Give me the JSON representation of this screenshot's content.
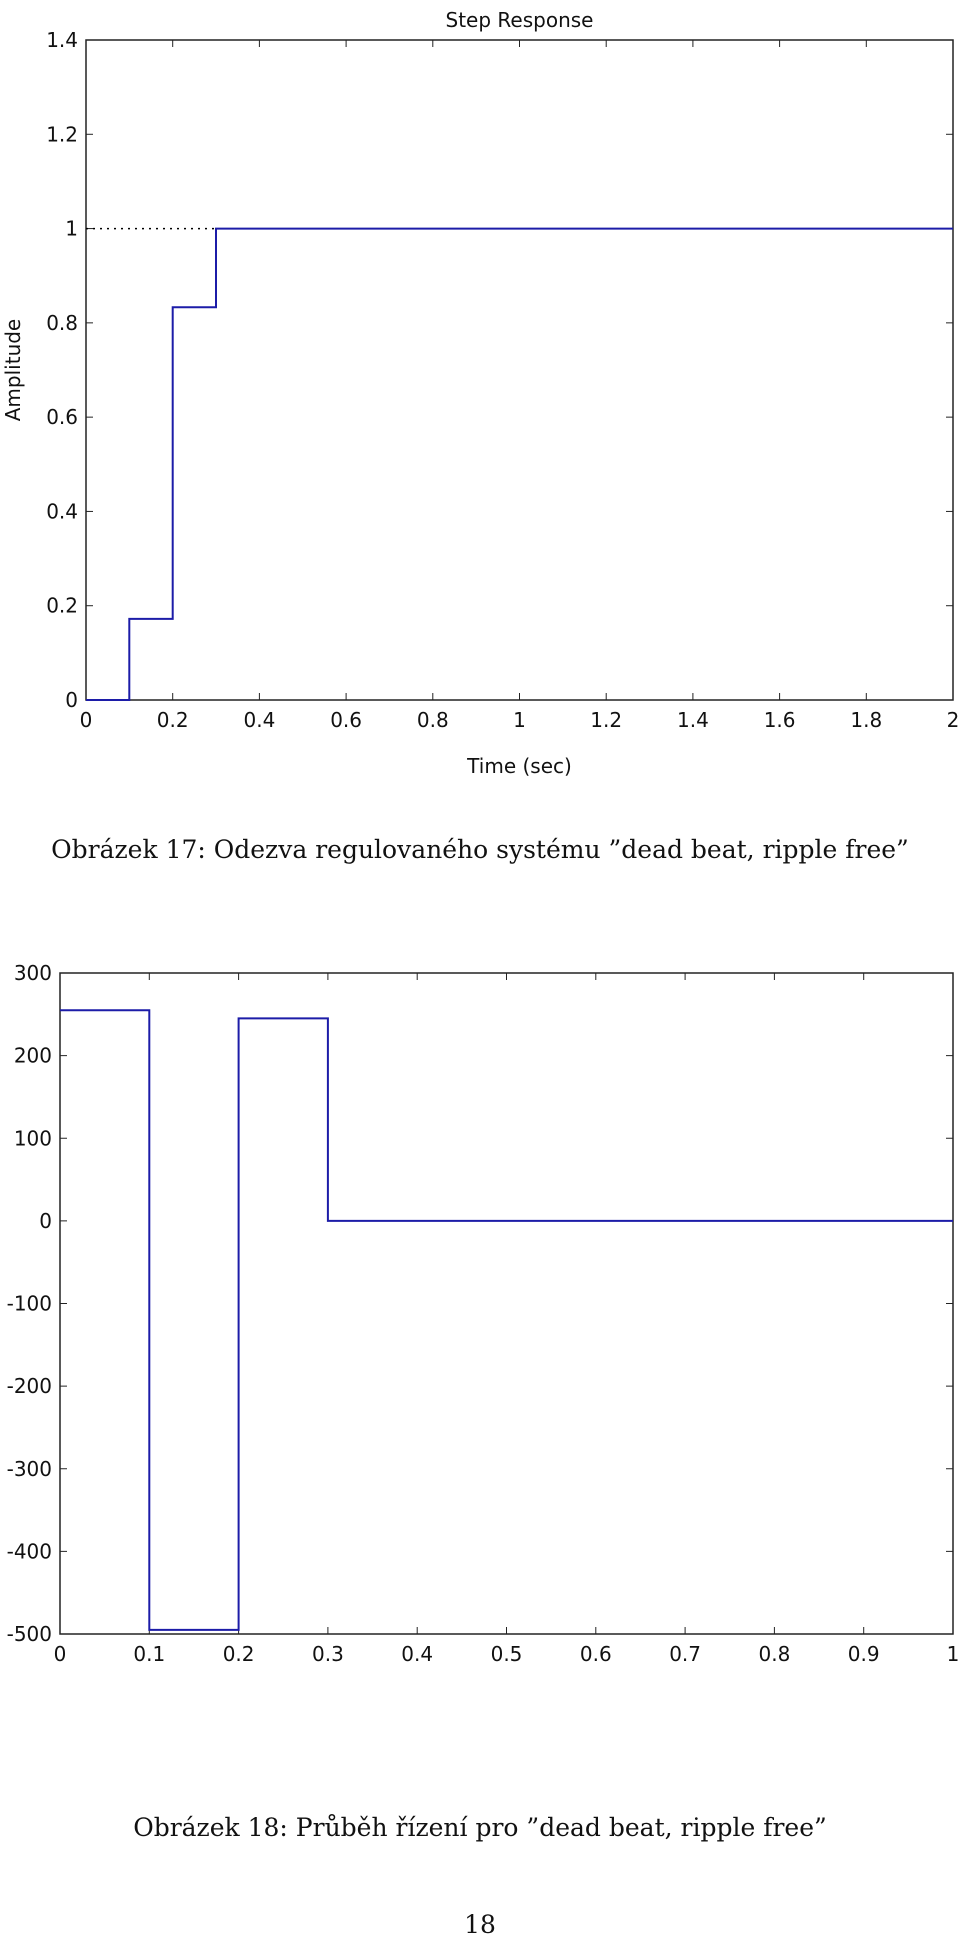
{
  "page_number": "18",
  "chart_data": [
    {
      "type": "line",
      "step": true,
      "title": "Step Response",
      "xlabel": "Time (sec)",
      "ylabel": "Amplitude",
      "xlim": [
        0,
        2
      ],
      "ylim": [
        0,
        1.4
      ],
      "xticks": [
        "0",
        "0.2",
        "0.4",
        "0.6",
        "0.8",
        "1",
        "1.2",
        "1.4",
        "1.6",
        "1.8",
        "2"
      ],
      "yticks": [
        "0",
        "0.2",
        "0.4",
        "0.6",
        "0.8",
        "1",
        "1.2",
        "1.4"
      ],
      "series": [
        {
          "color": "#1c1ca8",
          "x": [
            0,
            0.1,
            0.1,
            0.2,
            0.2,
            0.3,
            0.3,
            2
          ],
          "y": [
            0,
            0,
            0.172,
            0.172,
            0.833,
            0.833,
            1,
            1
          ]
        }
      ],
      "reference_line": {
        "y": 1,
        "x_range": [
          0,
          0.3
        ],
        "style": "dotted",
        "color": "#000000"
      },
      "caption": "Obrázek 17: Odezva regulovaného systému ”dead beat, ripple free”"
    },
    {
      "type": "line",
      "step": true,
      "xlim": [
        0,
        1
      ],
      "ylim": [
        -500,
        300
      ],
      "xticks": [
        "0",
        "0.1",
        "0.2",
        "0.3",
        "0.4",
        "0.5",
        "0.6",
        "0.7",
        "0.8",
        "0.9",
        "1"
      ],
      "yticks": [
        "300",
        "200",
        "100",
        "0",
        "-100",
        "-200",
        "-300",
        "-400",
        "-500"
      ],
      "series": [
        {
          "color": "#1c1ca8",
          "x": [
            0,
            0.1,
            0.1,
            0.2,
            0.2,
            0.3,
            0.3,
            1
          ],
          "y": [
            255,
            255,
            -495,
            -495,
            245,
            245,
            0,
            0
          ]
        }
      ],
      "caption": "Obrázek 18: Průběh řízení pro ”dead beat, ripple free”"
    }
  ]
}
